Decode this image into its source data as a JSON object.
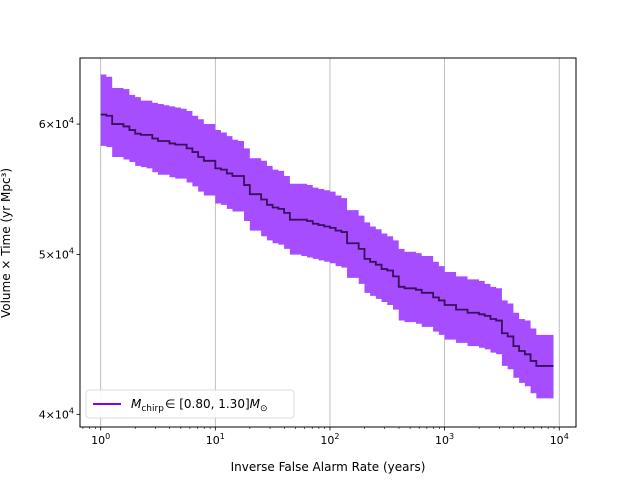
{
  "chart_data": {
    "type": "area",
    "xlabel": "Inverse False Alarm Rate (years)",
    "ylabel": "Volume × Time (yr Mpc³)",
    "xscale": "log",
    "yscale": "log",
    "xlim": [
      0.66,
      14000
    ],
    "ylim": [
      39300,
      65800
    ],
    "grid": "x-major",
    "legend_position": "lower-left",
    "x_ticks": [
      {
        "value": 1,
        "base": "10",
        "exp": "0"
      },
      {
        "value": 10,
        "base": "10",
        "exp": "1"
      },
      {
        "value": 100,
        "base": "10",
        "exp": "2"
      },
      {
        "value": 1000,
        "base": "10",
        "exp": "3"
      },
      {
        "value": 10000,
        "base": "10",
        "exp": "4"
      }
    ],
    "y_ticks": [
      {
        "value": 40000,
        "mant": "4",
        "exp": "4"
      },
      {
        "value": 50000,
        "mant": "5",
        "exp": "4"
      },
      {
        "value": 60000,
        "mant": "6",
        "exp": "4"
      }
    ],
    "series": [
      {
        "name": "M_chirp ∈ [0.80, 1.30] M_⊙",
        "legend": {
          "symbol": "M",
          "sub": "chirp",
          "range": "∈ [0.80, 1.30]",
          "unit": "M",
          "unit_sub": "⊙"
        },
        "line_color": "#3b0f5c",
        "band_color": "#a64dff",
        "legend_line_color": "#7f00ff",
        "x": [
          1,
          1.12,
          1.26,
          1.41,
          1.58,
          1.78,
          2.0,
          2.24,
          2.51,
          2.82,
          3.16,
          3.55,
          3.98,
          4.47,
          5.01,
          5.62,
          6.31,
          7.08,
          7.94,
          8.91,
          10,
          11.2,
          12.6,
          14.1,
          15.8,
          17.8,
          20,
          22.4,
          25.1,
          28.2,
          31.6,
          35.5,
          39.8,
          44.7,
          50.1,
          56.2,
          63.1,
          70.8,
          79.4,
          89.1,
          100,
          112,
          126,
          141,
          158,
          178,
          200,
          224,
          251,
          282,
          316,
          355,
          398,
          447,
          501,
          562,
          631,
          708,
          794,
          891,
          1000,
          1122,
          1259,
          1413,
          1585,
          1778,
          1995,
          2239,
          2512,
          2818,
          3162,
          3548,
          3981,
          4467,
          5012,
          5623,
          6310,
          7079,
          7943,
          8913
        ],
        "y": [
          60800,
          60700,
          60000,
          60000,
          59800,
          59500,
          59200,
          59100,
          59100,
          58800,
          58600,
          58600,
          58400,
          58300,
          58300,
          58000,
          57700,
          57300,
          57000,
          57000,
          56400,
          56300,
          56000,
          55800,
          55800,
          55100,
          54400,
          54400,
          54000,
          53600,
          53400,
          53300,
          53000,
          52500,
          52500,
          52500,
          52400,
          52200,
          52100,
          52000,
          51900,
          51700,
          51600,
          50800,
          50800,
          50400,
          49700,
          49500,
          49300,
          49000,
          48900,
          48500,
          47800,
          47700,
          47700,
          47600,
          47400,
          47400,
          47100,
          46900,
          46600,
          46600,
          46300,
          46300,
          46100,
          46100,
          46000,
          45900,
          45700,
          45600,
          44800,
          44600,
          44000,
          43700,
          43500,
          43100,
          42800,
          42800,
          42800,
          42800
        ],
        "upper": [
          64300,
          64100,
          63100,
          63100,
          63000,
          62500,
          62300,
          62000,
          62000,
          61800,
          61700,
          61600,
          61500,
          61400,
          61300,
          61100,
          60700,
          60400,
          60000,
          60000,
          59500,
          59300,
          59000,
          58700,
          58600,
          58000,
          57200,
          57200,
          57000,
          56600,
          56300,
          56200,
          55800,
          55200,
          55200,
          55200,
          55100,
          54900,
          54800,
          54700,
          54600,
          54300,
          54100,
          53200,
          53200,
          52800,
          52300,
          52000,
          51800,
          51500,
          51300,
          51000,
          50400,
          50200,
          50200,
          50100,
          49900,
          49900,
          49500,
          49200,
          48800,
          48800,
          48500,
          48500,
          48300,
          48300,
          48200,
          48000,
          47800,
          47700,
          46900,
          46700,
          46100,
          45700,
          45600,
          45100,
          44700,
          44700,
          44700,
          44700
        ],
        "lower": [
          58200,
          58100,
          57300,
          57300,
          57100,
          56900,
          56600,
          56500,
          56400,
          56100,
          55900,
          55900,
          55700,
          55600,
          55600,
          55300,
          55000,
          54600,
          54300,
          54300,
          53700,
          53600,
          53300,
          53100,
          53100,
          52400,
          51700,
          51700,
          51300,
          51000,
          50800,
          50700,
          50400,
          50000,
          50000,
          49900,
          49800,
          49700,
          49600,
          49500,
          49400,
          49200,
          49100,
          48400,
          48400,
          48000,
          47400,
          47200,
          47000,
          46800,
          46600,
          46300,
          45600,
          45500,
          45500,
          45400,
          45200,
          45200,
          44900,
          44700,
          44400,
          44400,
          44200,
          44200,
          44000,
          44000,
          43900,
          43800,
          43600,
          43500,
          42800,
          42600,
          42100,
          41800,
          41600,
          41200,
          40900,
          40900,
          40900,
          40900
        ]
      }
    ]
  }
}
